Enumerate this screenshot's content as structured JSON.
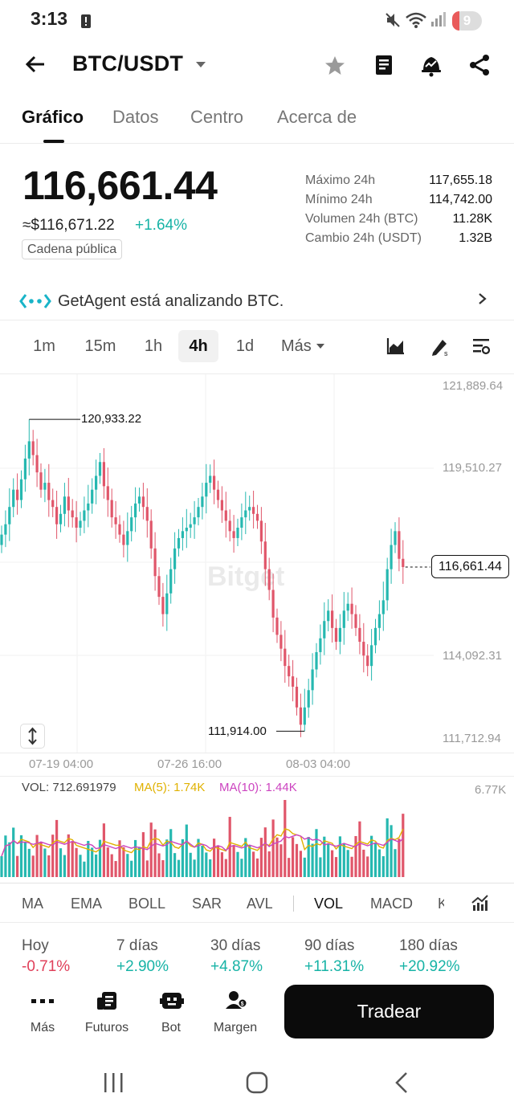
{
  "status_bar": {
    "time": "3:13",
    "battery": "9"
  },
  "header": {
    "pair": "BTC/USDT"
  },
  "tabs": [
    {
      "label": "Gráfico",
      "active": true
    },
    {
      "label": "Datos"
    },
    {
      "label": "Centro"
    },
    {
      "label": "Acerca de"
    }
  ],
  "price": {
    "last": "116,661.44",
    "usd": "≈$116,671.22",
    "change": "+1.64%",
    "chain_badge": "Cadena pública"
  },
  "stats": [
    {
      "label": "Máximo 24h",
      "value": "117,655.18"
    },
    {
      "label": "Mínimo 24h",
      "value": "114,742.00"
    },
    {
      "label": "Volumen 24h (BTC)",
      "value": "11.28K"
    },
    {
      "label": "Cambio 24h (USDT)",
      "value": "1.32B"
    }
  ],
  "agent": {
    "text": "GetAgent está analizando BTC."
  },
  "intervals": [
    "1m",
    "15m",
    "1h",
    "4h",
    "1d"
  ],
  "interval_active": "4h",
  "more_label": "Más",
  "watermark": "Bitget",
  "chart": {
    "y_ticks": [
      "121,889.64",
      "119,510.27",
      "114,092.31",
      "111,712.94"
    ],
    "high_label": "120,933.22",
    "low_label": "111,914.00",
    "last_label": "116,661.44",
    "x_ticks": [
      "07-19 04:00",
      "07-26 16:00",
      "08-03 04:00"
    ]
  },
  "chart_data": {
    "type": "candlestick",
    "interval": "4h",
    "ylim": [
      111712.94,
      121889.64
    ],
    "y_ticks": [
      121889.64,
      119510.27,
      114092.31,
      111712.94
    ],
    "x_ticks": [
      "07-19 04:00",
      "07-26 16:00",
      "08-03 04:00"
    ],
    "max_high": 120933.22,
    "min_low": 111914.0,
    "last": 116661.44,
    "closes": [
      117600,
      117900,
      118400,
      118900,
      118600,
      119200,
      119800,
      120300,
      119900,
      119400,
      118900,
      119100,
      118600,
      118400,
      117900,
      118200,
      118700,
      118300,
      118100,
      117800,
      118000,
      118300,
      118500,
      118900,
      119300,
      119700,
      119000,
      118600,
      118100,
      117900,
      117600,
      117300,
      117700,
      118100,
      118500,
      118700,
      118400,
      118000,
      117200,
      116400,
      115800,
      115300,
      115900,
      116600,
      117200,
      117500,
      117700,
      117800,
      117900,
      118100,
      118400,
      118700,
      119100,
      119300,
      118900,
      118600,
      118300,
      118000,
      117700,
      117500,
      117800,
      118100,
      118300,
      118400,
      118200,
      118000,
      117400,
      116600,
      116000,
      115200,
      114700,
      114300,
      113800,
      113500,
      113200,
      112600,
      112100,
      112600,
      113100,
      113700,
      114200,
      114600,
      115100,
      115400,
      114900,
      114500,
      114900,
      115400,
      115600,
      115300,
      114900,
      114500,
      114100,
      113800,
      114400,
      114900,
      115300,
      115700,
      116600,
      117300,
      117700,
      116900,
      116661
    ]
  },
  "volume": {
    "vol_label": "VOL: 712.691979",
    "ma5_label": "MA(5): 1.74K",
    "ma10_label": "MA(10): 1.44K",
    "max_label": "6.77K"
  },
  "indicators": [
    "MA",
    "EMA",
    "BOLL",
    "SAR",
    "AVL",
    "VOL",
    "MACD",
    "K"
  ],
  "performance": [
    {
      "label": "Hoy",
      "value": "-0.71%"
    },
    {
      "label": "7 días",
      "value": "+2.90%"
    },
    {
      "label": "30 días",
      "value": "+4.87%"
    },
    {
      "label": "90 días",
      "value": "+11.31%"
    },
    {
      "label": "180 días",
      "value": "+20.92%"
    }
  ],
  "actions": [
    {
      "label": "Más"
    },
    {
      "label": "Futuros"
    },
    {
      "label": "Bot"
    },
    {
      "label": "Margen"
    }
  ],
  "trade_label": "Tradear",
  "colors": {
    "up": "#26b8b0",
    "down": "#e0566a",
    "accent": "#0b0b0b"
  }
}
